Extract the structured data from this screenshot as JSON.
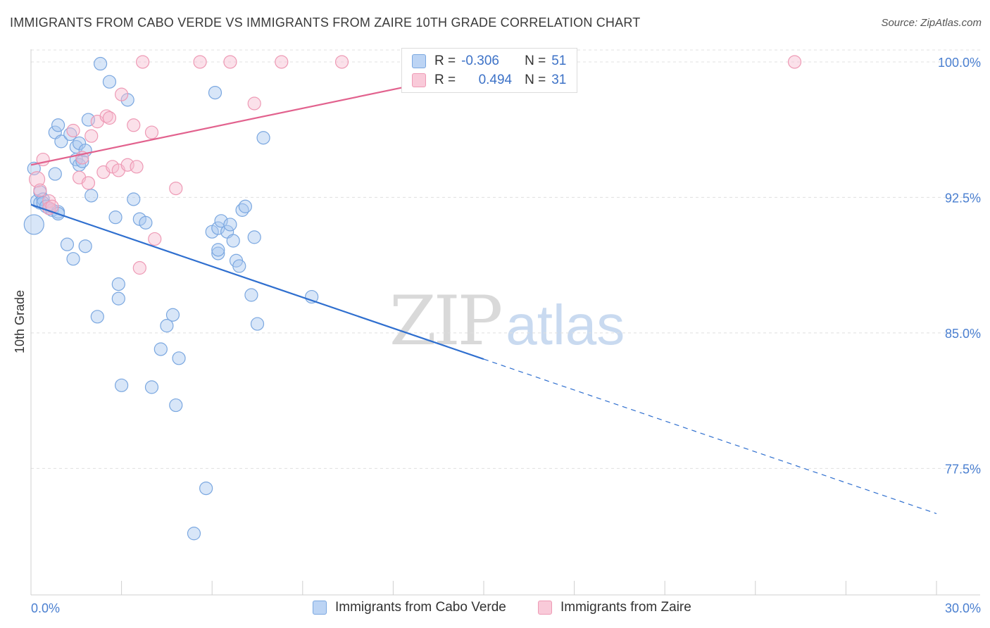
{
  "title": "IMMIGRANTS FROM CABO VERDE VS IMMIGRANTS FROM ZAIRE 10TH GRADE CORRELATION CHART",
  "source": "Source: ZipAtlas.com",
  "watermark": {
    "zip": "ZIP",
    "atlas": "atlas"
  },
  "legend_top": {
    "rows": [
      {
        "r_label": "R =",
        "r_value": "-0.306",
        "n_label": "N =",
        "n_value": "51"
      },
      {
        "r_label": "R =",
        "r_value": "0.494",
        "n_label": "N =",
        "n_value": "31"
      }
    ]
  },
  "legend_bottom": {
    "items": [
      "Immigrants from Cabo Verde",
      "Immigrants from Zaire"
    ]
  },
  "colors": {
    "blue_fill": "#a8c8f0",
    "blue_stroke": "#7aa7e0",
    "blue_line": "#2f6fcf",
    "pink_fill": "#f7bdd0",
    "pink_stroke": "#ee9ab5",
    "pink_line": "#e2628e",
    "tick_text": "#4a7fd0",
    "grid": "#e0e0e0"
  },
  "chart_data": {
    "type": "scatter",
    "title": "IMMIGRANTS FROM CABO VERDE VS IMMIGRANTS FROM ZAIRE 10TH GRADE CORRELATION CHART",
    "xlabel": "",
    "ylabel": "10th Grade",
    "xlim": [
      0,
      30
    ],
    "ylim": [
      70.5,
      100.7
    ],
    "x_tick_labels": [
      "0.0%",
      "30.0%"
    ],
    "y_ticks": [
      77.5,
      85.0,
      92.5,
      100.0
    ],
    "y_tick_labels": [
      "77.5%",
      "85.0%",
      "92.5%",
      "100.0%"
    ],
    "grid": true,
    "legend_placement": "bottom",
    "series": [
      {
        "name": "Immigrants from Cabo Verde",
        "r": -0.306,
        "n": 51,
        "trend": {
          "x_start": 0.0,
          "y_start": 92.1,
          "x_solid_end": 15.0,
          "x_end": 30.0,
          "y_end": 75.0
        },
        "points": [
          [
            0.1,
            91.0,
            14
          ],
          [
            0.1,
            94.1,
            9
          ],
          [
            0.2,
            92.3,
            9
          ],
          [
            0.3,
            92.2,
            9
          ],
          [
            0.3,
            92.8,
            9
          ],
          [
            0.4,
            92.4,
            9
          ],
          [
            0.4,
            92.2,
            9
          ],
          [
            0.5,
            92.0,
            9
          ],
          [
            0.6,
            91.9,
            9
          ],
          [
            0.7,
            91.8,
            9
          ],
          [
            0.8,
            93.8,
            9
          ],
          [
            0.8,
            96.1,
            9
          ],
          [
            0.9,
            96.5,
            9
          ],
          [
            0.9,
            91.7,
            9
          ],
          [
            0.9,
            91.6,
            9
          ],
          [
            1.0,
            95.6,
            9
          ],
          [
            1.2,
            89.9,
            9
          ],
          [
            1.3,
            96.0,
            9
          ],
          [
            1.4,
            89.1,
            9
          ],
          [
            1.5,
            94.6,
            9
          ],
          [
            1.5,
            95.3,
            9
          ],
          [
            1.6,
            95.5,
            9
          ],
          [
            1.6,
            94.3,
            9
          ],
          [
            1.7,
            94.5,
            9
          ],
          [
            1.8,
            95.1,
            9
          ],
          [
            1.8,
            89.8,
            9
          ],
          [
            1.9,
            96.8,
            9
          ],
          [
            2.0,
            92.6,
            9
          ],
          [
            2.2,
            85.9,
            9
          ],
          [
            2.3,
            99.9,
            9
          ],
          [
            2.6,
            98.9,
            9
          ],
          [
            2.8,
            91.4,
            9
          ],
          [
            2.9,
            86.9,
            9
          ],
          [
            2.9,
            87.7,
            9
          ],
          [
            3.0,
            82.1,
            9
          ],
          [
            3.2,
            97.9,
            9
          ],
          [
            3.4,
            92.4,
            9
          ],
          [
            3.6,
            91.3,
            9
          ],
          [
            3.8,
            91.1,
            9
          ],
          [
            4.0,
            82.0,
            9
          ],
          [
            4.3,
            84.1,
            9
          ],
          [
            4.5,
            85.4,
            9
          ],
          [
            4.7,
            86.0,
            9
          ],
          [
            4.8,
            81.0,
            9
          ],
          [
            4.9,
            83.6,
            9
          ],
          [
            5.4,
            73.9,
            9
          ],
          [
            5.8,
            76.4,
            9
          ],
          [
            6.0,
            90.6,
            9
          ],
          [
            6.2,
            90.8,
            9
          ],
          [
            6.1,
            98.3,
            9
          ],
          [
            6.2,
            89.4,
            9
          ],
          [
            6.2,
            89.6,
            9
          ],
          [
            6.3,
            91.2,
            9
          ],
          [
            6.5,
            90.6,
            9
          ],
          [
            6.6,
            91.0,
            9
          ],
          [
            6.7,
            90.1,
            9
          ],
          [
            6.8,
            89.0,
            9
          ],
          [
            6.9,
            88.7,
            9
          ],
          [
            7.0,
            91.8,
            9
          ],
          [
            7.1,
            92.0,
            9
          ],
          [
            7.3,
            87.1,
            9
          ],
          [
            7.4,
            90.3,
            9
          ],
          [
            7.5,
            85.5,
            9
          ],
          [
            7.7,
            95.8,
            9
          ],
          [
            9.3,
            87.0,
            9
          ]
        ]
      },
      {
        "name": "Immigrants from Zaire",
        "r": 0.494,
        "n": 31,
        "trend": {
          "x_start": 0.0,
          "y_start": 94.3,
          "x_solid_end": 18.1,
          "x_end": 18.1,
          "y_end": 100.6
        },
        "points": [
          [
            0.2,
            93.5,
            11
          ],
          [
            0.3,
            92.9,
            9
          ],
          [
            0.4,
            94.6,
            9
          ],
          [
            0.6,
            92.3,
            9
          ],
          [
            0.6,
            91.9,
            9
          ],
          [
            0.7,
            92.0,
            9
          ],
          [
            1.4,
            96.2,
            9
          ],
          [
            1.6,
            93.6,
            9
          ],
          [
            1.7,
            94.7,
            9
          ],
          [
            1.9,
            93.3,
            9
          ],
          [
            2.0,
            95.9,
            9
          ],
          [
            2.2,
            96.7,
            9
          ],
          [
            2.4,
            93.9,
            9
          ],
          [
            2.5,
            97.0,
            9
          ],
          [
            2.6,
            96.9,
            9
          ],
          [
            2.7,
            94.2,
            9
          ],
          [
            2.9,
            94.0,
            9
          ],
          [
            3.0,
            98.2,
            9
          ],
          [
            3.2,
            94.3,
            9
          ],
          [
            3.4,
            96.5,
            9
          ],
          [
            3.5,
            94.2,
            9
          ],
          [
            3.6,
            88.6,
            9
          ],
          [
            3.7,
            100.0,
            9
          ],
          [
            4.0,
            96.1,
            9
          ],
          [
            4.1,
            90.2,
            9
          ],
          [
            4.8,
            93.0,
            9
          ],
          [
            5.6,
            100.0,
            9
          ],
          [
            6.6,
            100.0,
            9
          ],
          [
            7.4,
            97.7,
            9
          ],
          [
            8.3,
            100.0,
            9
          ],
          [
            10.3,
            100.0,
            9
          ],
          [
            25.3,
            100.0,
            9
          ],
          [
            13.0,
            100.0,
            9
          ]
        ]
      }
    ]
  }
}
